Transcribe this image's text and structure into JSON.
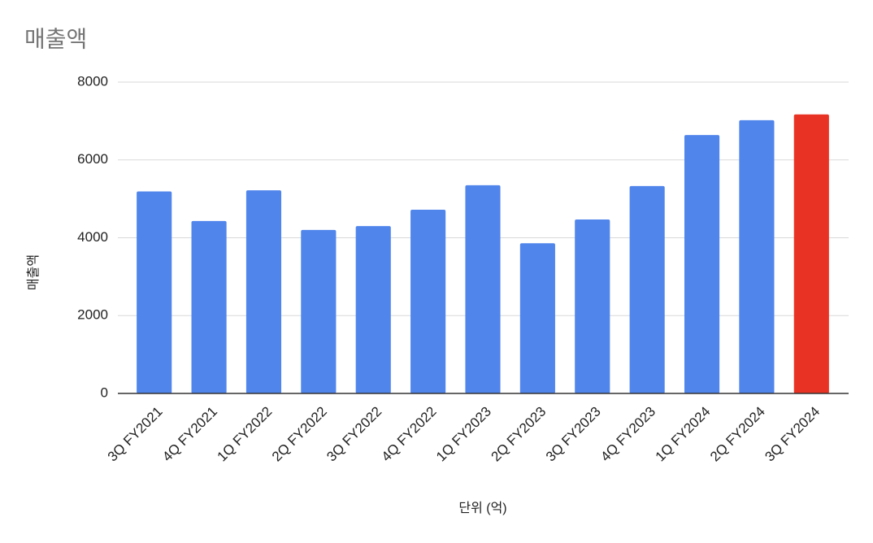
{
  "chart_data": {
    "type": "bar",
    "title": "매출액",
    "y_label": "매출액",
    "x_label": "단위 (억)",
    "categories": [
      "3Q FY2021",
      "4Q FY2021",
      "1Q FY2022",
      "2Q FY2022",
      "3Q FY2022",
      "4Q FY2022",
      "1Q FY2023",
      "2Q FY2023",
      "3Q FY2023",
      "4Q FY2023",
      "1Q FY2024",
      "2Q FY2024",
      "3Q FY2024"
    ],
    "values": [
      5190,
      4430,
      5220,
      4200,
      4300,
      4720,
      5350,
      3860,
      4470,
      5330,
      6640,
      7020,
      7170
    ],
    "colors": [
      "#5085ec",
      "#5085ec",
      "#5085ec",
      "#5085ec",
      "#5085ec",
      "#5085ec",
      "#5085ec",
      "#5085ec",
      "#5085ec",
      "#5085ec",
      "#5085ec",
      "#5085ec",
      "#e83324"
    ],
    "ylim": [
      0,
      8000
    ],
    "yticks": [
      0,
      2000,
      4000,
      6000,
      8000
    ],
    "grid": true
  }
}
